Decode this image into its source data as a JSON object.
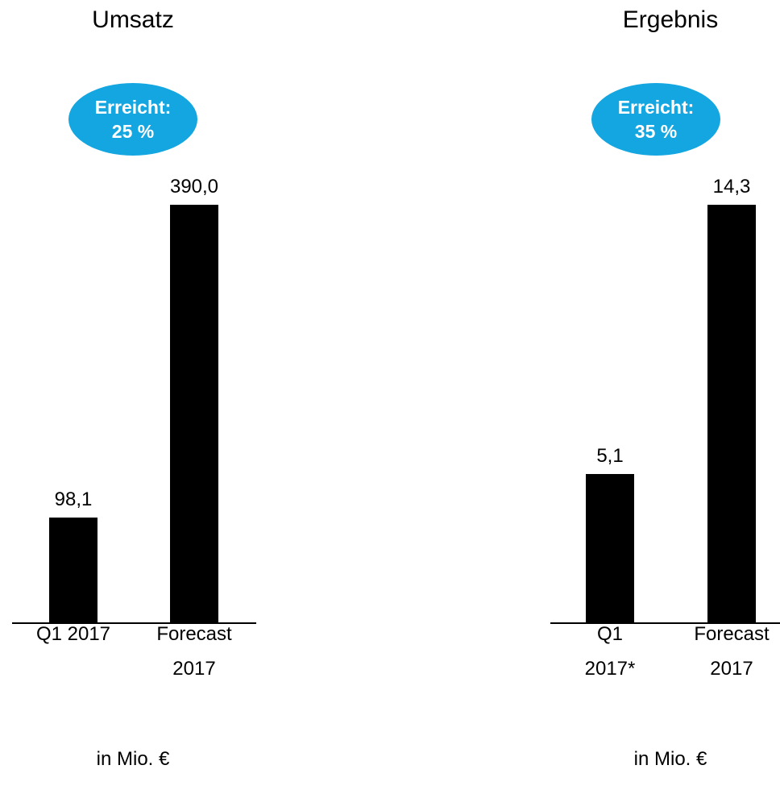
{
  "chart_data": [
    {
      "type": "bar",
      "title": "Umsatz",
      "annotation": [
        "Erreicht:",
        "25 %"
      ],
      "categories": [
        "Q1 2017",
        "Forecast 2017"
      ],
      "values": [
        98.1,
        390.0
      ],
      "value_labels": [
        "98,1",
        "390,0"
      ],
      "color": "#000000",
      "note": "in Mio. €"
    },
    {
      "type": "bar",
      "title": "Ergebnis",
      "annotation": [
        "Erreicht:",
        "35 %"
      ],
      "categories": [
        "Q1 2017*",
        "Forecast 2017"
      ],
      "values": [
        5.1,
        14.3
      ],
      "value_labels": [
        "5,1",
        "14,3"
      ],
      "color": "#000000",
      "note": "in Mio. €"
    }
  ]
}
